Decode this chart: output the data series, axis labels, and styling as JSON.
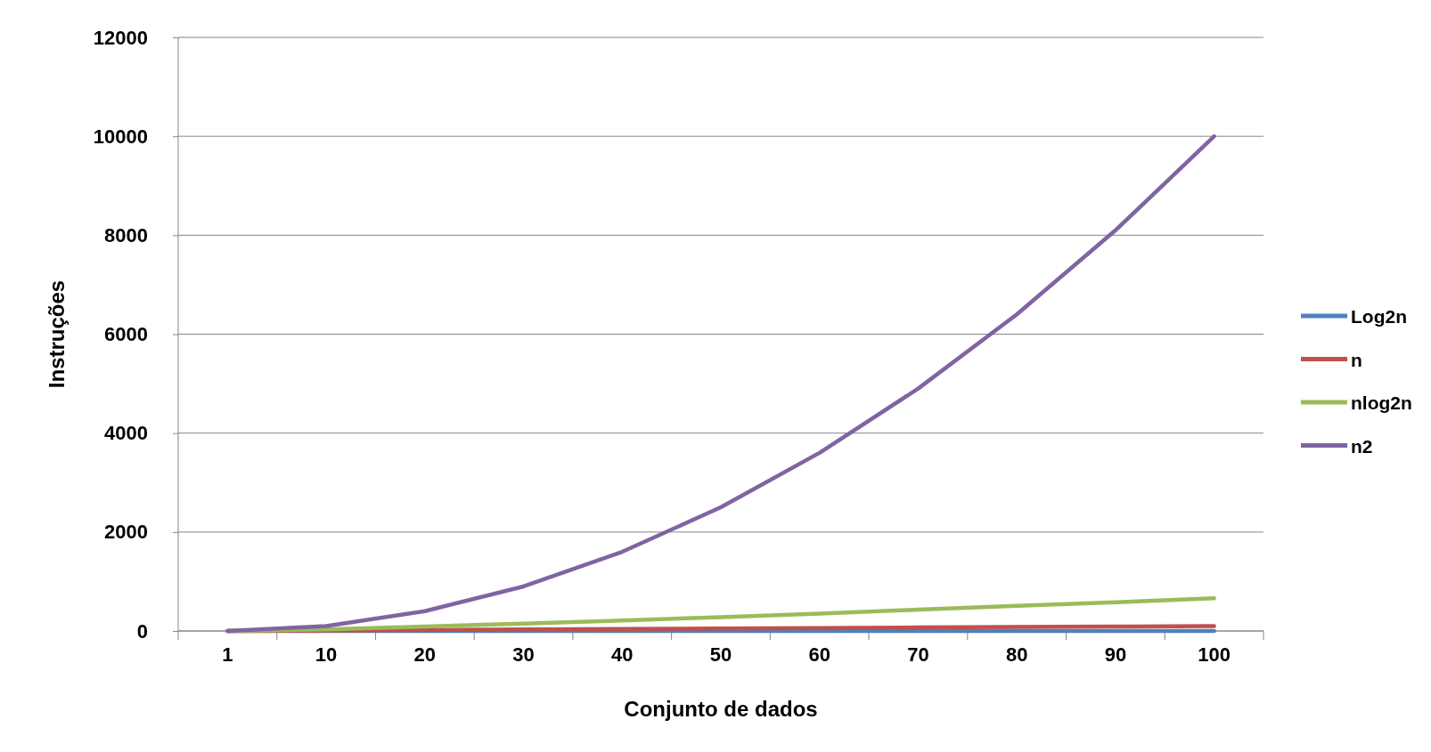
{
  "chart_data": {
    "type": "line",
    "xlabel": "Conjunto de dados",
    "ylabel": "Instruções",
    "categories": [
      "1",
      "10",
      "20",
      "30",
      "40",
      "50",
      "60",
      "70",
      "80",
      "90",
      "100"
    ],
    "series": [
      {
        "name": "Log2n",
        "color": "#4f81bd",
        "values": [
          0,
          0,
          0,
          0,
          0,
          0,
          0,
          0,
          0,
          0,
          0
        ]
      },
      {
        "name": "n",
        "color": "#c0504d",
        "values": [
          0,
          10,
          20,
          30,
          40,
          50,
          60,
          70,
          80,
          90,
          100
        ]
      },
      {
        "name": "nlog2n",
        "color": "#9bbb59",
        "values": [
          0,
          30,
          90,
          150,
          210,
          280,
          350,
          430,
          510,
          580,
          660
        ]
      },
      {
        "name": "n2",
        "color": "#8064a2",
        "values": [
          0,
          100,
          400,
          900,
          1600,
          2500,
          3600,
          4900,
          6400,
          8100,
          10000
        ]
      }
    ],
    "ylim": [
      0,
      12000
    ],
    "yticks": [
      0,
      2000,
      4000,
      6000,
      8000,
      10000,
      12000
    ],
    "grid": "y",
    "legend": "right",
    "marker": "none",
    "line_style": "solid"
  }
}
